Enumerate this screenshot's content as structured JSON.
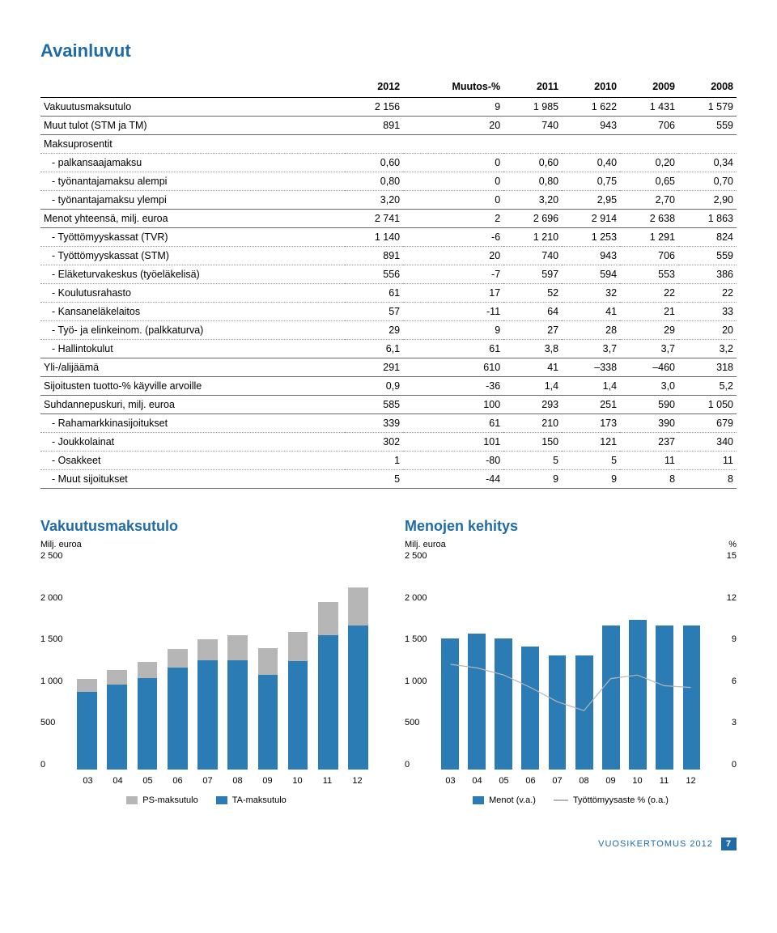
{
  "title": "Avainluvut",
  "table": {
    "headers": [
      "",
      "2012",
      "Muutos-%",
      "2011",
      "2010",
      "2009",
      "2008"
    ],
    "rows": [
      {
        "label": "Vakuutusmaksutulo",
        "cells": [
          "2 156",
          "9",
          "1 985",
          "1 622",
          "1 431",
          "1 579"
        ],
        "section": true
      },
      {
        "label": "Muut tulot (STM ja TM)",
        "cells": [
          "891",
          "20",
          "740",
          "943",
          "706",
          "559"
        ],
        "section": true
      },
      {
        "label": "Maksuprosentit",
        "cells": [
          "",
          "",
          "",
          "",
          "",
          ""
        ],
        "nobb": true
      },
      {
        "label": "-  palkansaajamaksu",
        "cells": [
          "0,60",
          "0",
          "0,60",
          "0,40",
          "0,20",
          "0,34"
        ],
        "indent": true
      },
      {
        "label": "-  työnantajamaksu alempi",
        "cells": [
          "0,80",
          "0",
          "0,80",
          "0,75",
          "0,65",
          "0,70"
        ],
        "indent": true
      },
      {
        "label": "-  työnantajamaksu ylempi",
        "cells": [
          "3,20",
          "0",
          "3,20",
          "2,95",
          "2,70",
          "2,90"
        ],
        "indent": true,
        "section": true
      },
      {
        "label": "Menot yhteensä, milj. euroa",
        "cells": [
          "2 741",
          "2",
          "2 696",
          "2 914",
          "2 638",
          "1 863"
        ],
        "section": true
      },
      {
        "label": "-  Työttömyyskassat (TVR)",
        "cells": [
          "1 140",
          "-6",
          "1 210",
          "1 253",
          "1 291",
          "824"
        ],
        "indent": true
      },
      {
        "label": "-  Työttömyyskassat (STM)",
        "cells": [
          "891",
          "20",
          "740",
          "943",
          "706",
          "559"
        ],
        "indent": true
      },
      {
        "label": "-  Eläketurvakeskus (työeläkelisä)",
        "cells": [
          "556",
          "-7",
          "597",
          "594",
          "553",
          "386"
        ],
        "indent": true
      },
      {
        "label": "-  Koulutusrahasto",
        "cells": [
          "61",
          "17",
          "52",
          "32",
          "22",
          "22"
        ],
        "indent": true
      },
      {
        "label": "-  Kansaneläkelaitos",
        "cells": [
          "57",
          "-11",
          "64",
          "41",
          "21",
          "33"
        ],
        "indent": true
      },
      {
        "label": "-  Työ- ja elinkeinom. (palkkaturva)",
        "cells": [
          "29",
          "9",
          "27",
          "28",
          "29",
          "20"
        ],
        "indent": true
      },
      {
        "label": "-  Hallintokulut",
        "cells": [
          "6,1",
          "61",
          "3,8",
          "3,7",
          "3,7",
          "3,2"
        ],
        "indent": true,
        "section": true
      },
      {
        "label": "Yli-/alijäämä",
        "cells": [
          "291",
          "610",
          "41",
          "–338",
          "–460",
          "318"
        ],
        "section": true
      },
      {
        "label": "Sijoitusten tuotto-% käyville arvoille",
        "cells": [
          "0,9",
          "-36",
          "1,4",
          "1,4",
          "3,0",
          "5,2"
        ],
        "section": true
      },
      {
        "label": "Suhdannepuskuri, milj. euroa",
        "cells": [
          "585",
          "100",
          "293",
          "251",
          "590",
          "1 050"
        ],
        "section": true
      },
      {
        "label": "-  Rahamarkkinasijoitukset",
        "cells": [
          "339",
          "61",
          "210",
          "173",
          "390",
          "679"
        ],
        "indent": true
      },
      {
        "label": "-  Joukkolainat",
        "cells": [
          "302",
          "101",
          "150",
          "121",
          "237",
          "340"
        ],
        "indent": true
      },
      {
        "label": "-  Osakkeet",
        "cells": [
          "1",
          "-80",
          "5",
          "5",
          "11",
          "11"
        ],
        "indent": true
      },
      {
        "label": "-  Muut sijoitukset",
        "cells": [
          "5",
          "-44",
          "9",
          "9",
          "8",
          "8"
        ],
        "indent": true,
        "section": true
      }
    ]
  },
  "chart1": {
    "title": "Vakuutusmaksutulo",
    "unit_left": "Milj. euroa",
    "ymax": 2500,
    "yticks": [
      "2 500",
      "2 000",
      "1 500",
      "1 000",
      "500",
      "0"
    ],
    "categories": [
      "03",
      "04",
      "05",
      "06",
      "07",
      "08",
      "09",
      "10",
      "11",
      "12"
    ],
    "series": [
      {
        "name": "PS-maksutulo",
        "color": "#b6b6b6",
        "values": [
          150,
          170,
          190,
          220,
          250,
          290,
          310,
          340,
          400,
          450
        ]
      },
      {
        "name": "TA-maksutulo",
        "color": "#2b7cb5",
        "values": [
          920,
          1000,
          1080,
          1200,
          1290,
          1290,
          1120,
          1280,
          1580,
          1700
        ]
      }
    ],
    "background": "#ffffff"
  },
  "chart2": {
    "title": "Menojen kehitys",
    "unit_left": "Milj. euroa",
    "unit_right": "%",
    "ymax": 2500,
    "y2max": 15,
    "yticks": [
      "2 500",
      "2 000",
      "1 500",
      "1 000",
      "500",
      "0"
    ],
    "y2ticks": [
      "15",
      "12",
      "9",
      "6",
      "3",
      "0"
    ],
    "categories": [
      "03",
      "04",
      "05",
      "06",
      "07",
      "08",
      "09",
      "10",
      "11",
      "12"
    ],
    "bar": {
      "name": "Menot (v.a.)",
      "color": "#2b7cb5",
      "values": [
        1550,
        1600,
        1550,
        1450,
        1350,
        1350,
        1700,
        1770,
        1700,
        1700
      ]
    },
    "line": {
      "name": "Työttömyysaste % (o.a.)",
      "color": "#b6b6b6",
      "values": [
        9.0,
        8.8,
        8.4,
        7.7,
        6.9,
        6.4,
        8.2,
        8.4,
        7.8,
        7.7
      ]
    },
    "background": "#ffffff"
  },
  "footer": {
    "text": "VUOSIKERTOMUS 2012",
    "page": "7"
  }
}
